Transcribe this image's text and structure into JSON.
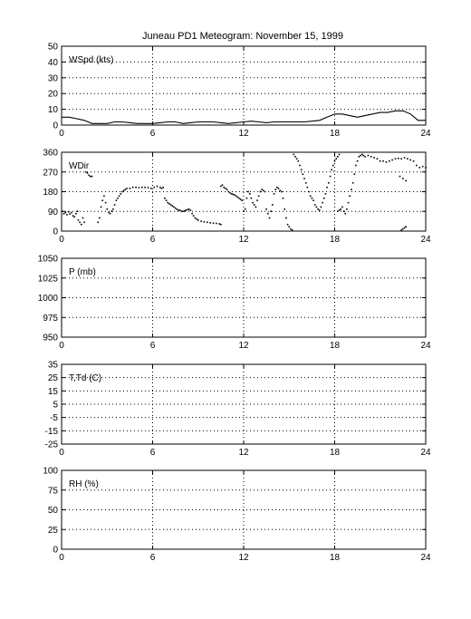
{
  "title": "Juneau PD1 Meteogram:  November 15, 1999",
  "chart_data": [
    {
      "type": "line",
      "label": "WSpd (kts)",
      "xlim": [
        0,
        24
      ],
      "ylim": [
        0,
        50
      ],
      "xticks": [
        0,
        6,
        12,
        18,
        24
      ],
      "yticks": [
        0,
        10,
        20,
        30,
        40,
        50
      ],
      "grid": true,
      "series": [
        {
          "x": [
            0,
            0.5,
            1,
            1.5,
            2,
            2.5,
            3,
            3.5,
            4,
            4.5,
            5,
            5.5,
            6,
            6.5,
            7,
            7.5,
            8,
            8.5,
            9,
            9.5,
            10,
            10.5,
            11,
            11.5,
            12,
            12.5,
            13,
            13.5,
            14,
            14.5,
            15,
            15.5,
            16,
            16.5,
            17,
            17.5,
            18,
            18.5,
            19,
            19.5,
            20,
            20.5,
            21,
            21.5,
            22,
            22.5,
            23,
            23.5,
            24
          ],
          "y": [
            5,
            5,
            4,
            3,
            1,
            1,
            1,
            2,
            2,
            1.5,
            1,
            1,
            1,
            1.5,
            2,
            2,
            1,
            1.5,
            2,
            2,
            2,
            1.5,
            1,
            1.5,
            2,
            2.5,
            2,
            1.5,
            2,
            2,
            2,
            2,
            2,
            2.5,
            3,
            5,
            7,
            7,
            6,
            5,
            6,
            7,
            8,
            8,
            9,
            9,
            7,
            3,
            3
          ]
        }
      ]
    },
    {
      "type": "scatter",
      "label": "WDir",
      "xlim": [
        0,
        24
      ],
      "ylim": [
        0,
        360
      ],
      "xticks": [
        0,
        6,
        12,
        18,
        24
      ],
      "yticks": [
        0,
        90,
        180,
        270,
        360
      ],
      "grid": true,
      "series": [
        {
          "points": [
            [
              0.05,
              90
            ],
            [
              0.15,
              80
            ],
            [
              0.25,
              85
            ],
            [
              0.35,
              75
            ],
            [
              0.45,
              88
            ],
            [
              0.55,
              78
            ],
            [
              0.65,
              85
            ],
            [
              0.75,
              70
            ],
            [
              0.85,
              65
            ],
            [
              0.95,
              80
            ],
            [
              1.05,
              90
            ],
            [
              1.1,
              50
            ],
            [
              1.2,
              40
            ],
            [
              1.3,
              30
            ],
            [
              1.4,
              60
            ],
            [
              1.5,
              40
            ],
            [
              1.6,
              270
            ],
            [
              1.7,
              265
            ],
            [
              1.8,
              255
            ],
            [
              1.9,
              250
            ],
            [
              2.0,
              250
            ],
            [
              2.4,
              40
            ],
            [
              2.5,
              60
            ],
            [
              2.6,
              110
            ],
            [
              2.7,
              140
            ],
            [
              2.8,
              160
            ],
            [
              2.9,
              130
            ],
            [
              3.0,
              100
            ],
            [
              3.1,
              85
            ],
            [
              3.2,
              80
            ],
            [
              3.3,
              90
            ],
            [
              3.4,
              100
            ],
            [
              3.5,
              120
            ],
            [
              3.6,
              140
            ],
            [
              3.7,
              150
            ],
            [
              3.8,
              160
            ],
            [
              3.9,
              170
            ],
            [
              4.0,
              180
            ],
            [
              4.1,
              185
            ],
            [
              4.2,
              190
            ],
            [
              4.3,
              195
            ],
            [
              4.5,
              195
            ],
            [
              4.7,
              200
            ],
            [
              4.9,
              200
            ],
            [
              5.1,
              198
            ],
            [
              5.3,
              200
            ],
            [
              5.5,
              200
            ],
            [
              5.7,
              198
            ],
            [
              5.9,
              195
            ],
            [
              6.1,
              200
            ],
            [
              6.3,
              205
            ],
            [
              6.5,
              200
            ],
            [
              6.6,
              195
            ],
            [
              6.7,
              200
            ],
            [
              6.8,
              150
            ],
            [
              6.9,
              140
            ],
            [
              7.0,
              130
            ],
            [
              7.1,
              125
            ],
            [
              7.2,
              120
            ],
            [
              7.3,
              115
            ],
            [
              7.4,
              110
            ],
            [
              7.5,
              105
            ],
            [
              7.6,
              100
            ],
            [
              7.7,
              95
            ],
            [
              7.8,
              95
            ],
            [
              7.9,
              90
            ],
            [
              8.0,
              90
            ],
            [
              8.1,
              92
            ],
            [
              8.2,
              95
            ],
            [
              8.3,
              98
            ],
            [
              8.4,
              100
            ],
            [
              8.5,
              95
            ],
            [
              8.6,
              80
            ],
            [
              8.7,
              70
            ],
            [
              8.8,
              60
            ],
            [
              8.9,
              55
            ],
            [
              9.0,
              50
            ],
            [
              9.2,
              45
            ],
            [
              9.4,
              42
            ],
            [
              9.6,
              40
            ],
            [
              9.8,
              38
            ],
            [
              10.0,
              36
            ],
            [
              10.2,
              35
            ],
            [
              10.4,
              33
            ],
            [
              10.5,
              30
            ],
            [
              10.5,
              205
            ],
            [
              10.6,
              210
            ],
            [
              10.7,
              200
            ],
            [
              10.8,
              195
            ],
            [
              10.9,
              190
            ],
            [
              11.0,
              180
            ],
            [
              11.1,
              175
            ],
            [
              11.2,
              170
            ],
            [
              11.3,
              168
            ],
            [
              11.4,
              165
            ],
            [
              11.5,
              160
            ],
            [
              11.6,
              155
            ],
            [
              11.7,
              150
            ],
            [
              11.8,
              145
            ],
            [
              11.9,
              140
            ],
            [
              12.0,
              90
            ],
            [
              12.1,
              100
            ],
            [
              12.2,
              150
            ],
            [
              12.3,
              180
            ],
            [
              12.4,
              170
            ],
            [
              12.5,
              150
            ],
            [
              12.6,
              130
            ],
            [
              12.7,
              120
            ],
            [
              12.8,
              110
            ],
            [
              12.9,
              140
            ],
            [
              13.0,
              160
            ],
            [
              13.1,
              180
            ],
            [
              13.2,
              190
            ],
            [
              13.3,
              185
            ],
            [
              13.4,
              180
            ],
            [
              13.5,
              100
            ],
            [
              13.6,
              80
            ],
            [
              13.7,
              60
            ],
            [
              13.8,
              90
            ],
            [
              13.9,
              120
            ],
            [
              14.0,
              170
            ],
            [
              14.1,
              190
            ],
            [
              14.2,
              200
            ],
            [
              14.3,
              195
            ],
            [
              14.4,
              185
            ],
            [
              14.5,
              180
            ],
            [
              14.6,
              150
            ],
            [
              14.7,
              100
            ],
            [
              14.8,
              60
            ],
            [
              14.9,
              30
            ],
            [
              15.0,
              20
            ],
            [
              15.1,
              10
            ],
            [
              15.2,
              5
            ],
            [
              15.3,
              350
            ],
            [
              15.4,
              340
            ],
            [
              15.5,
              330
            ],
            [
              15.6,
              320
            ],
            [
              15.7,
              300
            ],
            [
              15.8,
              280
            ],
            [
              15.9,
              260
            ],
            [
              16.0,
              240
            ],
            [
              16.1,
              220
            ],
            [
              16.2,
              200
            ],
            [
              16.3,
              180
            ],
            [
              16.4,
              160
            ],
            [
              16.5,
              150
            ],
            [
              16.6,
              140
            ],
            [
              16.7,
              120
            ],
            [
              16.8,
              110
            ],
            [
              16.9,
              100
            ],
            [
              17.0,
              95
            ],
            [
              17.1,
              110
            ],
            [
              17.2,
              130
            ],
            [
              17.3,
              150
            ],
            [
              17.4,
              170
            ],
            [
              17.5,
              200
            ],
            [
              17.6,
              220
            ],
            [
              17.7,
              250
            ],
            [
              17.8,
              280
            ],
            [
              17.9,
              300
            ],
            [
              18.0,
              320
            ],
            [
              18.1,
              330
            ],
            [
              18.2,
              340
            ],
            [
              18.3,
              350
            ],
            [
              18.2,
              90
            ],
            [
              18.3,
              95
            ],
            [
              18.4,
              100
            ],
            [
              18.5,
              110
            ],
            [
              18.6,
              90
            ],
            [
              18.7,
              80
            ],
            [
              18.8,
              100
            ],
            [
              18.9,
              130
            ],
            [
              19.0,
              160
            ],
            [
              19.1,
              190
            ],
            [
              19.2,
              220
            ],
            [
              19.3,
              260
            ],
            [
              19.4,
              300
            ],
            [
              19.5,
              320
            ],
            [
              19.6,
              340
            ],
            [
              19.7,
              345
            ],
            [
              19.8,
              350
            ],
            [
              19.9,
              345
            ],
            [
              20.0,
              340
            ],
            [
              20.2,
              345
            ],
            [
              20.4,
              340
            ],
            [
              20.6,
              335
            ],
            [
              20.8,
              330
            ],
            [
              21.0,
              320
            ],
            [
              21.2,
              320
            ],
            [
              21.4,
              315
            ],
            [
              21.6,
              320
            ],
            [
              21.8,
              325
            ],
            [
              22.0,
              330
            ],
            [
              22.2,
              332
            ],
            [
              22.4,
              330
            ],
            [
              22.6,
              335
            ],
            [
              22.8,
              330
            ],
            [
              23.0,
              325
            ],
            [
              23.2,
              320
            ],
            [
              23.4,
              300
            ],
            [
              23.6,
              290
            ],
            [
              23.8,
              295
            ],
            [
              24.0,
              290
            ],
            [
              22.3,
              250
            ],
            [
              22.5,
              240
            ],
            [
              22.7,
              230
            ],
            [
              22.4,
              5
            ],
            [
              22.5,
              10
            ],
            [
              22.6,
              15
            ],
            [
              22.7,
              20
            ]
          ]
        }
      ]
    },
    {
      "type": "line",
      "label": "P (mb)",
      "xlim": [
        0,
        24
      ],
      "ylim": [
        950,
        1050
      ],
      "xticks": [
        0,
        6,
        12,
        18,
        24
      ],
      "yticks": [
        950,
        975,
        1000,
        1025,
        1050
      ],
      "grid": true,
      "series": []
    },
    {
      "type": "line",
      "label": "T,Td (C)",
      "xlim": [
        0,
        24
      ],
      "ylim": [
        -25,
        35
      ],
      "xticks": [
        0,
        6,
        12,
        18,
        24
      ],
      "yticks": [
        -25,
        -15,
        -5,
        5,
        15,
        25,
        35
      ],
      "grid": true,
      "series": []
    },
    {
      "type": "line",
      "label": "RH (%)",
      "xlim": [
        0,
        24
      ],
      "ylim": [
        0,
        100
      ],
      "xticks": [
        0,
        6,
        12,
        18,
        24
      ],
      "yticks": [
        0,
        25,
        50,
        75,
        100
      ],
      "grid": true,
      "series": []
    }
  ]
}
